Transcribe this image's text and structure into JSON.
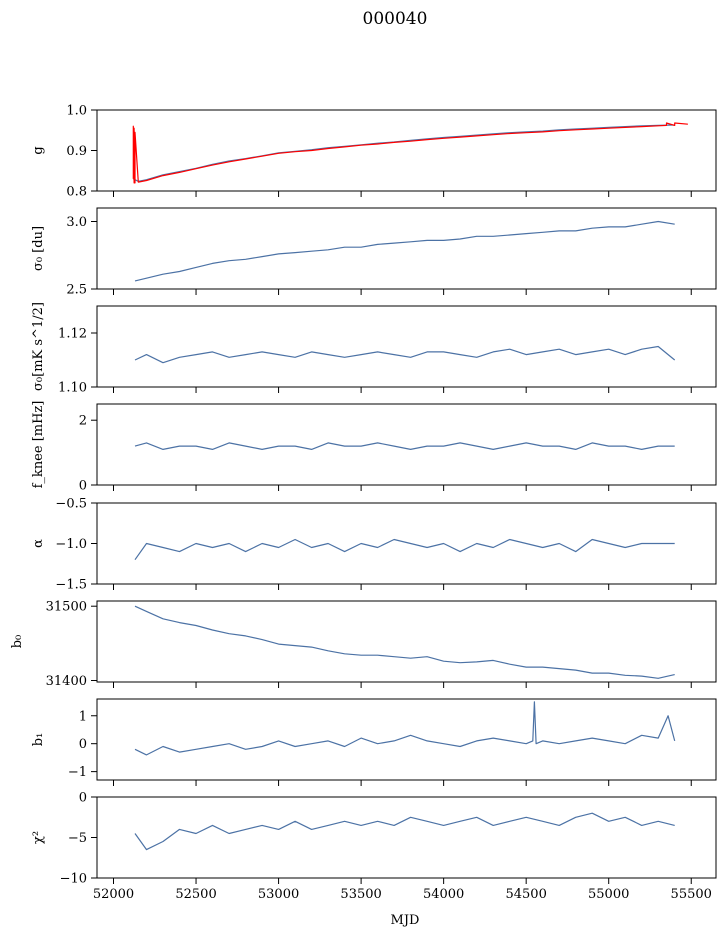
{
  "figure": {
    "title": "000040",
    "xlabel": "MJD"
  },
  "colors": {
    "primary": "#4c72a5",
    "overlay": "#ff0000"
  },
  "chart_data": [
    {
      "type": "line",
      "panel": "g",
      "ylabel": "g",
      "xlim": [
        51900,
        55650
      ],
      "ylim": [
        0.8,
        1.0
      ],
      "yticks": [
        0.8,
        0.9,
        1.0
      ],
      "ytick_labels": [
        "0.8",
        "0.9",
        "1.0"
      ],
      "series": [
        {
          "color": "#4c72a5",
          "x": [
            52120,
            52150,
            52200,
            52300,
            52400,
            52500,
            52600,
            52700,
            52800,
            52900,
            53000,
            53100,
            53200,
            53300,
            53400,
            53500,
            53600,
            53700,
            53800,
            53900,
            54000,
            54100,
            54200,
            54300,
            54400,
            54500,
            54600,
            54700,
            54800,
            54900,
            55000,
            55100,
            55200,
            55300,
            55400
          ],
          "y": [
            0.83,
            0.824,
            0.828,
            0.84,
            0.848,
            0.856,
            0.866,
            0.874,
            0.88,
            0.887,
            0.894,
            0.898,
            0.902,
            0.907,
            0.91,
            0.914,
            0.918,
            0.921,
            0.925,
            0.929,
            0.932,
            0.935,
            0.938,
            0.941,
            0.944,
            0.946,
            0.948,
            0.951,
            0.953,
            0.955,
            0.957,
            0.959,
            0.961,
            0.962,
            0.963
          ]
        },
        {
          "color": "#ff0000",
          "x": [
            52120,
            52120,
            52125,
            52125,
            52130,
            52130,
            52150,
            52200,
            52300,
            52400,
            52500,
            52600,
            52700,
            52800,
            52900,
            53000,
            53100,
            53200,
            53300,
            53400,
            53500,
            53600,
            53700,
            53800,
            53900,
            54000,
            54100,
            54200,
            54300,
            54400,
            54500,
            54600,
            54700,
            54800,
            54900,
            55000,
            55100,
            55200,
            55300,
            55350,
            55350,
            55400,
            55400,
            55480
          ],
          "y": [
            0.83,
            0.96,
            0.82,
            0.955,
            0.82,
            0.945,
            0.822,
            0.826,
            0.838,
            0.846,
            0.855,
            0.864,
            0.872,
            0.879,
            0.886,
            0.893,
            0.897,
            0.9,
            0.905,
            0.909,
            0.913,
            0.916,
            0.92,
            0.923,
            0.927,
            0.93,
            0.933,
            0.936,
            0.939,
            0.942,
            0.944,
            0.946,
            0.949,
            0.951,
            0.953,
            0.955,
            0.957,
            0.959,
            0.961,
            0.962,
            0.968,
            0.962,
            0.968,
            0.965
          ]
        }
      ]
    },
    {
      "type": "line",
      "panel": "sigma0",
      "ylabel": "σ₀ [du]",
      "xlim": [
        51900,
        55650
      ],
      "ylim": [
        2.5,
        3.1
      ],
      "yticks": [
        2.5,
        3.0
      ],
      "ytick_labels": [
        "2.5",
        "3.0"
      ],
      "series": [
        {
          "color": "#4c72a5",
          "x": [
            52130,
            52200,
            52300,
            52400,
            52500,
            52600,
            52700,
            52800,
            52900,
            53000,
            53100,
            53200,
            53300,
            53400,
            53500,
            53600,
            53700,
            53800,
            53900,
            54000,
            54100,
            54200,
            54300,
            54400,
            54500,
            54600,
            54700,
            54800,
            54900,
            55000,
            55100,
            55200,
            55300,
            55400
          ],
          "y": [
            2.56,
            2.58,
            2.61,
            2.63,
            2.66,
            2.69,
            2.71,
            2.72,
            2.74,
            2.76,
            2.77,
            2.78,
            2.79,
            2.81,
            2.81,
            2.83,
            2.84,
            2.85,
            2.86,
            2.86,
            2.87,
            2.89,
            2.89,
            2.9,
            2.91,
            2.92,
            2.93,
            2.93,
            2.95,
            2.96,
            2.96,
            2.98,
            3.0,
            2.98
          ]
        }
      ]
    },
    {
      "type": "line",
      "panel": "sigma0_mk",
      "ylabel": "σ₀[mK s^1/2]",
      "xlim": [
        51900,
        55650
      ],
      "ylim": [
        1.1,
        1.13
      ],
      "yticks": [
        1.1,
        1.12
      ],
      "ytick_labels": [
        "1.10",
        "1.12"
      ],
      "series": [
        {
          "color": "#4c72a5",
          "x": [
            52130,
            52200,
            52300,
            52400,
            52500,
            52600,
            52700,
            52800,
            52900,
            53000,
            53100,
            53200,
            53300,
            53400,
            53500,
            53600,
            53700,
            53800,
            53900,
            54000,
            54100,
            54200,
            54300,
            54400,
            54500,
            54600,
            54700,
            54800,
            54900,
            55000,
            55100,
            55200,
            55300,
            55400
          ],
          "y": [
            1.11,
            1.112,
            1.109,
            1.111,
            1.112,
            1.113,
            1.111,
            1.112,
            1.113,
            1.112,
            1.111,
            1.113,
            1.112,
            1.111,
            1.112,
            1.113,
            1.112,
            1.111,
            1.113,
            1.113,
            1.112,
            1.111,
            1.113,
            1.114,
            1.112,
            1.113,
            1.114,
            1.112,
            1.113,
            1.114,
            1.112,
            1.114,
            1.115,
            1.11
          ]
        }
      ]
    },
    {
      "type": "line",
      "panel": "fknee",
      "ylabel": "f_knee [mHz]",
      "xlim": [
        51900,
        55650
      ],
      "ylim": [
        0,
        2.5
      ],
      "yticks": [
        0,
        2
      ],
      "ytick_labels": [
        "0",
        "2"
      ],
      "series": [
        {
          "color": "#4c72a5",
          "x": [
            52130,
            52200,
            52300,
            52400,
            52500,
            52600,
            52700,
            52800,
            52900,
            53000,
            53100,
            53200,
            53300,
            53400,
            53500,
            53600,
            53700,
            53800,
            53900,
            54000,
            54100,
            54200,
            54300,
            54400,
            54500,
            54600,
            54700,
            54800,
            54900,
            55000,
            55100,
            55200,
            55300,
            55400
          ],
          "y": [
            1.2,
            1.3,
            1.1,
            1.2,
            1.2,
            1.1,
            1.3,
            1.2,
            1.1,
            1.2,
            1.2,
            1.1,
            1.3,
            1.2,
            1.2,
            1.3,
            1.2,
            1.1,
            1.2,
            1.2,
            1.3,
            1.2,
            1.1,
            1.2,
            1.3,
            1.2,
            1.2,
            1.1,
            1.3,
            1.2,
            1.2,
            1.1,
            1.2,
            1.2
          ]
        }
      ]
    },
    {
      "type": "line",
      "panel": "alpha",
      "ylabel": "α",
      "xlim": [
        51900,
        55650
      ],
      "ylim": [
        -1.5,
        -0.5
      ],
      "yticks": [
        -1.5,
        -1.0,
        -0.5
      ],
      "ytick_labels": [
        "−1.5",
        "−1.0",
        "−0.5"
      ],
      "series": [
        {
          "color": "#4c72a5",
          "x": [
            52130,
            52200,
            52300,
            52400,
            52500,
            52600,
            52700,
            52800,
            52900,
            53000,
            53100,
            53200,
            53300,
            53400,
            53500,
            53600,
            53700,
            53800,
            53900,
            54000,
            54100,
            54200,
            54300,
            54400,
            54500,
            54600,
            54700,
            54800,
            54900,
            55000,
            55100,
            55200,
            55300,
            55400
          ],
          "y": [
            -1.2,
            -1.0,
            -1.05,
            -1.1,
            -1.0,
            -1.05,
            -1.0,
            -1.1,
            -1.0,
            -1.05,
            -0.95,
            -1.05,
            -1.0,
            -1.1,
            -1.0,
            -1.05,
            -0.95,
            -1.0,
            -1.05,
            -1.0,
            -1.1,
            -1.0,
            -1.05,
            -0.95,
            -1.0,
            -1.05,
            -1.0,
            -1.1,
            -0.95,
            -1.0,
            -1.05,
            -1.0,
            -1.0,
            -1.0
          ]
        }
      ]
    },
    {
      "type": "line",
      "panel": "b0",
      "ylabel": "b₀",
      "xlim": [
        51900,
        55650
      ],
      "ylim": [
        31398,
        31507
      ],
      "yticks": [
        31400,
        31500
      ],
      "ytick_labels": [
        "31400",
        "31500"
      ],
      "series": [
        {
          "color": "#4c72a5",
          "x": [
            52130,
            52200,
            52300,
            52400,
            52500,
            52600,
            52700,
            52800,
            52900,
            53000,
            53100,
            53200,
            53300,
            53400,
            53500,
            53600,
            53700,
            53800,
            53900,
            54000,
            54100,
            54200,
            54300,
            54400,
            54500,
            54600,
            54700,
            54800,
            54900,
            55000,
            55100,
            55200,
            55300,
            55400
          ],
          "y": [
            31500,
            31493,
            31483,
            31478,
            31474,
            31468,
            31463,
            31460,
            31455,
            31449,
            31447,
            31445,
            31440,
            31436,
            31434,
            31434,
            31432,
            31430,
            31432,
            31426,
            31424,
            31425,
            31427,
            31422,
            31418,
            31418,
            31416,
            31414,
            31410,
            31410,
            31407,
            31406,
            31403,
            31408
          ]
        }
      ]
    },
    {
      "type": "line",
      "panel": "b1",
      "ylabel": "b₁",
      "xlim": [
        51900,
        55650
      ],
      "ylim": [
        -1.3,
        1.6
      ],
      "yticks": [
        -1,
        0,
        1
      ],
      "ytick_labels": [
        "−1",
        "0",
        "1"
      ],
      "series": [
        {
          "color": "#4c72a5",
          "x": [
            52130,
            52200,
            52300,
            52400,
            52500,
            52600,
            52700,
            52800,
            52900,
            53000,
            53100,
            53200,
            53300,
            53400,
            53500,
            53600,
            53700,
            53800,
            53900,
            54000,
            54100,
            54200,
            54300,
            54400,
            54500,
            54540,
            54550,
            54560,
            54600,
            54700,
            54800,
            54900,
            55000,
            55100,
            55200,
            55300,
            55360,
            55400
          ],
          "y": [
            -0.2,
            -0.4,
            -0.1,
            -0.3,
            -0.2,
            -0.1,
            0.0,
            -0.2,
            -0.1,
            0.1,
            -0.1,
            0.0,
            0.1,
            -0.1,
            0.2,
            0.0,
            0.1,
            0.3,
            0.1,
            0.0,
            -0.1,
            0.1,
            0.2,
            0.1,
            0.0,
            0.1,
            1.5,
            0.0,
            0.1,
            0.0,
            0.1,
            0.2,
            0.1,
            0.0,
            0.3,
            0.2,
            1.0,
            0.1
          ]
        }
      ]
    },
    {
      "type": "line",
      "panel": "chi2",
      "ylabel": "χ²",
      "xlim": [
        51900,
        55650
      ],
      "ylim": [
        -10,
        0
      ],
      "yticks": [
        -10,
        -5,
        0
      ],
      "ytick_labels": [
        "−10",
        "−5",
        "0"
      ],
      "xticks": [
        52000,
        52500,
        53000,
        53500,
        54000,
        54500,
        55000,
        55500
      ],
      "xtick_labels": [
        "52000",
        "52500",
        "53000",
        "53500",
        "54000",
        "54500",
        "55000",
        "55500"
      ],
      "series": [
        {
          "color": "#4c72a5",
          "x": [
            52130,
            52200,
            52300,
            52400,
            52500,
            52600,
            52700,
            52800,
            52900,
            53000,
            53100,
            53200,
            53300,
            53400,
            53500,
            53600,
            53700,
            53800,
            53900,
            54000,
            54100,
            54200,
            54300,
            54400,
            54500,
            54600,
            54700,
            54800,
            54900,
            55000,
            55100,
            55200,
            55300,
            55400
          ],
          "y": [
            -4.5,
            -6.5,
            -5.5,
            -4.0,
            -4.5,
            -3.5,
            -4.5,
            -4.0,
            -3.5,
            -4.0,
            -3.0,
            -4.0,
            -3.5,
            -3.0,
            -3.5,
            -3.0,
            -3.5,
            -2.5,
            -3.0,
            -3.5,
            -3.0,
            -2.5,
            -3.5,
            -3.0,
            -2.5,
            -3.0,
            -3.5,
            -2.5,
            -2.0,
            -3.0,
            -2.5,
            -3.5,
            -3.0,
            -3.5
          ]
        }
      ]
    }
  ]
}
